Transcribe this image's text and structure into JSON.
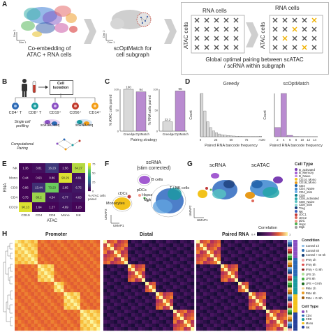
{
  "panel_a": {
    "letter": "A",
    "left_caption": "Co-embedding of\nATAC + RNA cells",
    "dim_axis": [
      "Dim 1",
      "Dim 2"
    ],
    "mid_caption": "scOptMatch for\ncell subgraph",
    "right_caption": "Global optimal pairing between scATAC\n/ scRNA within subgraph",
    "rna_cells": "RNA cells",
    "atac_cells": "ATAC cells"
  },
  "panel_b": {
    "letter": "B",
    "isolation": "Cell\nIsolation",
    "cell_types": [
      "CD4⁺ T",
      "CD8⁺ T",
      "CD19⁺",
      "CD56⁺",
      "CD14⁺"
    ],
    "single_cell": "Single cell\nprofiling",
    "scatac": "scATAC-seq",
    "scrna": "scRNA-seq",
    "computational": "Computational\nPairing"
  },
  "panel_c": {
    "letter": "C",
    "xlabel": "Pairing strategy",
    "chart_data": [
      {
        "type": "bar",
        "categories": [
          "Greedy",
          "scOptMatch"
        ],
        "values": [
          100,
          94
        ],
        "ylabel": "% ATAC cells paired",
        "ylim": [
          0,
          100
        ],
        "data_labels": [
          "100",
          "94"
        ]
      },
      {
        "type": "bar",
        "categories": [
          "Greedy",
          "scOptMatch"
        ],
        "values": [
          22.2,
          96
        ],
        "ylabel": "% RNA cells paired",
        "ylim": [
          0,
          100
        ],
        "data_labels": [
          "22.2",
          "96"
        ]
      }
    ]
  },
  "panel_d": {
    "letter": "D",
    "xlabel": "Paired RNA barcode frequency",
    "ylabel": "Count",
    "chart_data": [
      {
        "type": "bar",
        "title": "Greedy",
        "categories": [
          "0",
          "",
          "",
          "",
          "",
          "25",
          "",
          "",
          "",
          "",
          "50",
          "",
          "",
          "",
          "",
          "75",
          "",
          "",
          "",
          "",
          ">100"
        ],
        "values": [
          5200,
          3100,
          1800,
          1100,
          700,
          480,
          330,
          240,
          180,
          140,
          110,
          85,
          70,
          55,
          45,
          38,
          30,
          25,
          20,
          16,
          60
        ],
        "ticks": [
          "0",
          "25",
          "50",
          "75",
          ">100"
        ]
      },
      {
        "type": "bar",
        "title": "scOptMatch",
        "categories": [
          "2",
          "4",
          "6",
          "8",
          "10",
          "12",
          "14"
        ],
        "values": [
          1200,
          5600,
          180,
          30,
          10,
          5,
          2
        ],
        "ticks": [
          "2",
          "4",
          "6",
          "8",
          "10",
          "12",
          "14"
        ]
      }
    ]
  },
  "panel_e": {
    "letter": "E",
    "xlabel": "ATAC",
    "ylabel": "RNA",
    "legend_title": "% ATAC cells\npaired",
    "legend_ticks": [
      "0",
      "25",
      "50",
      "75"
    ],
    "chart_data": {
      "type": "heatmap",
      "rows": [
        "NK",
        "Mono",
        "CD8",
        "CD4",
        "CD19"
      ],
      "cols": [
        "CD19",
        "CD4",
        "CD8",
        "Mono",
        "NK"
      ],
      "values": [
        [
          1.36,
          3.81,
          16.23,
          2.56,
          84.27
        ],
        [
          0.44,
          0.63,
          0.86,
          90.29,
          4.91
        ],
        [
          0.86,
          13.44,
          73.23,
          2.85,
          6.75
        ],
        [
          0.75,
          80.2,
          4.54,
          6.77,
          4.63
        ],
        [
          90.13,
          1.64,
          1.27,
          4.69,
          1.23
        ]
      ]
    }
  },
  "panel_f": {
    "letter": "F",
    "title": "scRNA\n(stim corrected)",
    "labels": [
      "B cells",
      "T / NK cells",
      "cDCs",
      "pDCs",
      "Hspcs",
      "Mgk",
      "Monocytes"
    ],
    "axes": [
      "UMAP1",
      "UMAP2"
    ]
  },
  "panel_g": {
    "letter": "G",
    "titles": [
      "scRNA",
      "scATAC"
    ],
    "axes": [
      "UMAP1",
      "UMAP2"
    ],
    "legend_title": "Cell Type",
    "legend": [
      {
        "label": "B_activated",
        "color": "#7a3fb3"
      },
      {
        "label": "B_Memory",
        "color": "#a25bd1"
      },
      {
        "label": "B_Naive",
        "color": "#c48be0"
      },
      {
        "label": "CD14_Mono",
        "color": "#f2c21b"
      },
      {
        "label": "CD16_Mono",
        "color": "#e79a1a"
      },
      {
        "label": "CD4",
        "color": "#1f5fa8"
      },
      {
        "label": "CD4_Naive",
        "color": "#3b86d0"
      },
      {
        "label": "CD4_stim",
        "color": "#6db2e8"
      },
      {
        "label": "CD8",
        "color": "#0e7f8c"
      },
      {
        "label": "CD8_activated",
        "color": "#22a5a8"
      },
      {
        "label": "CD8_Naive",
        "color": "#57c2c2"
      },
      {
        "label": "CD8_stim",
        "color": "#8ad9d3"
      },
      {
        "label": "Treg",
        "color": "#1b3f7a"
      },
      {
        "label": "NK",
        "color": "#3a5fbf"
      },
      {
        "label": "cDC1",
        "color": "#c03838"
      },
      {
        "label": "cDC2",
        "color": "#e06a5c"
      },
      {
        "label": "pDC",
        "color": "#f59a8a"
      },
      {
        "label": "Hspc",
        "color": "#4caf50"
      },
      {
        "label": "Mgk",
        "color": "#9e9e9e"
      }
    ]
  },
  "panel_h": {
    "letter": "H",
    "titles": [
      "Promoter",
      "Distal",
      "Paired RNA"
    ],
    "colorbar_title": "Correlation",
    "colorbar_ticks": [
      "0.4",
      "1"
    ],
    "condition_title": "Condition",
    "conditions": [
      {
        "label": "Control 1h",
        "color": "#8fbde4"
      },
      {
        "label": "Control 6h",
        "color": "#2f6fb3"
      },
      {
        "label": "Control + GI 6h",
        "color": "#163d73"
      },
      {
        "label": "IFNγ 1h",
        "color": "#f4a7a7"
      },
      {
        "label": "IFNγ 6h",
        "color": "#e04a4a"
      },
      {
        "label": "IFNγ + GI 6h",
        "color": "#8e1d1d"
      },
      {
        "label": "LPS 1h",
        "color": "#aee39a"
      },
      {
        "label": "LPS 6h",
        "color": "#3fae3f"
      },
      {
        "label": "LPS + GI 6h",
        "color": "#1c6a1c"
      },
      {
        "label": "PMA 1h",
        "color": "#f6d08a"
      },
      {
        "label": "PMA 6h",
        "color": "#e99a23"
      },
      {
        "label": "PMA + GI 6h",
        "color": "#9c5a0b"
      }
    ],
    "celltype_title": "Cell Type",
    "celltypes": [
      {
        "label": "B",
        "color": "#8a4fc2"
      },
      {
        "label": "CD4",
        "color": "#2b69b5"
      },
      {
        "label": "CD8",
        "color": "#1a9aa0"
      },
      {
        "label": "Mono",
        "color": "#f2c21b"
      },
      {
        "label": "NK",
        "color": "#27419c"
      }
    ]
  }
}
